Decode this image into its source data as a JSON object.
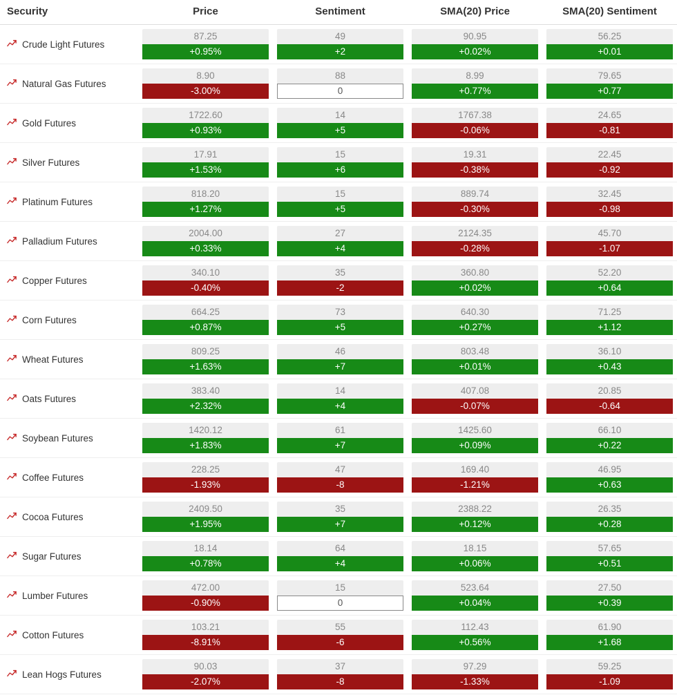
{
  "colors": {
    "positive_bg": "#178a17",
    "negative_bg": "#9c1414",
    "neutral_bg": "#ffffff",
    "value_top_bg": "#eeeeee",
    "value_top_text": "#888888",
    "icon_stroke": "#c62828",
    "header_text": "#333333",
    "row_border": "#eeeeee"
  },
  "headers": {
    "security": "Security",
    "price": "Price",
    "sentiment": "Sentiment",
    "sma_price": "SMA(20) Price",
    "sma_sentiment": "SMA(20) Sentiment"
  },
  "rows": [
    {
      "name": "Crude Light Futures",
      "price": {
        "value": "87.25",
        "change": "+0.95%",
        "dir": "pos"
      },
      "sentiment": {
        "value": "49",
        "change": "+2",
        "dir": "pos"
      },
      "sma_price": {
        "value": "90.95",
        "change": "+0.02%",
        "dir": "pos"
      },
      "sma_sentiment": {
        "value": "56.25",
        "change": "+0.01",
        "dir": "pos"
      }
    },
    {
      "name": "Natural Gas Futures",
      "price": {
        "value": "8.90",
        "change": "-3.00%",
        "dir": "neg"
      },
      "sentiment": {
        "value": "88",
        "change": "0",
        "dir": "neu"
      },
      "sma_price": {
        "value": "8.99",
        "change": "+0.77%",
        "dir": "pos"
      },
      "sma_sentiment": {
        "value": "79.65",
        "change": "+0.77",
        "dir": "pos"
      }
    },
    {
      "name": "Gold Futures",
      "price": {
        "value": "1722.60",
        "change": "+0.93%",
        "dir": "pos"
      },
      "sentiment": {
        "value": "14",
        "change": "+5",
        "dir": "pos"
      },
      "sma_price": {
        "value": "1767.38",
        "change": "-0.06%",
        "dir": "neg"
      },
      "sma_sentiment": {
        "value": "24.65",
        "change": "-0.81",
        "dir": "neg"
      }
    },
    {
      "name": "Silver Futures",
      "price": {
        "value": "17.91",
        "change": "+1.53%",
        "dir": "pos"
      },
      "sentiment": {
        "value": "15",
        "change": "+6",
        "dir": "pos"
      },
      "sma_price": {
        "value": "19.31",
        "change": "-0.38%",
        "dir": "neg"
      },
      "sma_sentiment": {
        "value": "22.45",
        "change": "-0.92",
        "dir": "neg"
      }
    },
    {
      "name": "Platinum Futures",
      "price": {
        "value": "818.20",
        "change": "+1.27%",
        "dir": "pos"
      },
      "sentiment": {
        "value": "15",
        "change": "+5",
        "dir": "pos"
      },
      "sma_price": {
        "value": "889.74",
        "change": "-0.30%",
        "dir": "neg"
      },
      "sma_sentiment": {
        "value": "32.45",
        "change": "-0.98",
        "dir": "neg"
      }
    },
    {
      "name": "Palladium Futures",
      "price": {
        "value": "2004.00",
        "change": "+0.33%",
        "dir": "pos"
      },
      "sentiment": {
        "value": "27",
        "change": "+4",
        "dir": "pos"
      },
      "sma_price": {
        "value": "2124.35",
        "change": "-0.28%",
        "dir": "neg"
      },
      "sma_sentiment": {
        "value": "45.70",
        "change": "-1.07",
        "dir": "neg"
      }
    },
    {
      "name": "Copper Futures",
      "price": {
        "value": "340.10",
        "change": "-0.40%",
        "dir": "neg"
      },
      "sentiment": {
        "value": "35",
        "change": "-2",
        "dir": "neg"
      },
      "sma_price": {
        "value": "360.80",
        "change": "+0.02%",
        "dir": "pos"
      },
      "sma_sentiment": {
        "value": "52.20",
        "change": "+0.64",
        "dir": "pos"
      }
    },
    {
      "name": "Corn Futures",
      "price": {
        "value": "664.25",
        "change": "+0.87%",
        "dir": "pos"
      },
      "sentiment": {
        "value": "73",
        "change": "+5",
        "dir": "pos"
      },
      "sma_price": {
        "value": "640.30",
        "change": "+0.27%",
        "dir": "pos"
      },
      "sma_sentiment": {
        "value": "71.25",
        "change": "+1.12",
        "dir": "pos"
      }
    },
    {
      "name": "Wheat Futures",
      "price": {
        "value": "809.25",
        "change": "+1.63%",
        "dir": "pos"
      },
      "sentiment": {
        "value": "46",
        "change": "+7",
        "dir": "pos"
      },
      "sma_price": {
        "value": "803.48",
        "change": "+0.01%",
        "dir": "pos"
      },
      "sma_sentiment": {
        "value": "36.10",
        "change": "+0.43",
        "dir": "pos"
      }
    },
    {
      "name": "Oats Futures",
      "price": {
        "value": "383.40",
        "change": "+2.32%",
        "dir": "pos"
      },
      "sentiment": {
        "value": "14",
        "change": "+4",
        "dir": "pos"
      },
      "sma_price": {
        "value": "407.08",
        "change": "-0.07%",
        "dir": "neg"
      },
      "sma_sentiment": {
        "value": "20.85",
        "change": "-0.64",
        "dir": "neg"
      }
    },
    {
      "name": "Soybean Futures",
      "price": {
        "value": "1420.12",
        "change": "+1.83%",
        "dir": "pos"
      },
      "sentiment": {
        "value": "61",
        "change": "+7",
        "dir": "pos"
      },
      "sma_price": {
        "value": "1425.60",
        "change": "+0.09%",
        "dir": "pos"
      },
      "sma_sentiment": {
        "value": "66.10",
        "change": "+0.22",
        "dir": "pos"
      }
    },
    {
      "name": "Coffee Futures",
      "price": {
        "value": "228.25",
        "change": "-1.93%",
        "dir": "neg"
      },
      "sentiment": {
        "value": "47",
        "change": "-8",
        "dir": "neg"
      },
      "sma_price": {
        "value": "169.40",
        "change": "-1.21%",
        "dir": "neg"
      },
      "sma_sentiment": {
        "value": "46.95",
        "change": "+0.63",
        "dir": "pos"
      }
    },
    {
      "name": "Cocoa Futures",
      "price": {
        "value": "2409.50",
        "change": "+1.95%",
        "dir": "pos"
      },
      "sentiment": {
        "value": "35",
        "change": "+7",
        "dir": "pos"
      },
      "sma_price": {
        "value": "2388.22",
        "change": "+0.12%",
        "dir": "pos"
      },
      "sma_sentiment": {
        "value": "26.35",
        "change": "+0.28",
        "dir": "pos"
      }
    },
    {
      "name": "Sugar Futures",
      "price": {
        "value": "18.14",
        "change": "+0.78%",
        "dir": "pos"
      },
      "sentiment": {
        "value": "64",
        "change": "+4",
        "dir": "pos"
      },
      "sma_price": {
        "value": "18.15",
        "change": "+0.06%",
        "dir": "pos"
      },
      "sma_sentiment": {
        "value": "57.65",
        "change": "+0.51",
        "dir": "pos"
      }
    },
    {
      "name": "Lumber Futures",
      "price": {
        "value": "472.00",
        "change": "-0.90%",
        "dir": "neg"
      },
      "sentiment": {
        "value": "15",
        "change": "0",
        "dir": "neu"
      },
      "sma_price": {
        "value": "523.64",
        "change": "+0.04%",
        "dir": "pos"
      },
      "sma_sentiment": {
        "value": "27.50",
        "change": "+0.39",
        "dir": "pos"
      }
    },
    {
      "name": "Cotton Futures",
      "price": {
        "value": "103.21",
        "change": "-8.91%",
        "dir": "neg"
      },
      "sentiment": {
        "value": "55",
        "change": "-6",
        "dir": "neg"
      },
      "sma_price": {
        "value": "112.43",
        "change": "+0.56%",
        "dir": "pos"
      },
      "sma_sentiment": {
        "value": "61.90",
        "change": "+1.68",
        "dir": "pos"
      }
    },
    {
      "name": "Lean Hogs Futures",
      "price": {
        "value": "90.03",
        "change": "-2.07%",
        "dir": "neg"
      },
      "sentiment": {
        "value": "37",
        "change": "-8",
        "dir": "neg"
      },
      "sma_price": {
        "value": "97.29",
        "change": "-1.33%",
        "dir": "neg"
      },
      "sma_sentiment": {
        "value": "59.25",
        "change": "-1.09",
        "dir": "neg"
      }
    }
  ]
}
